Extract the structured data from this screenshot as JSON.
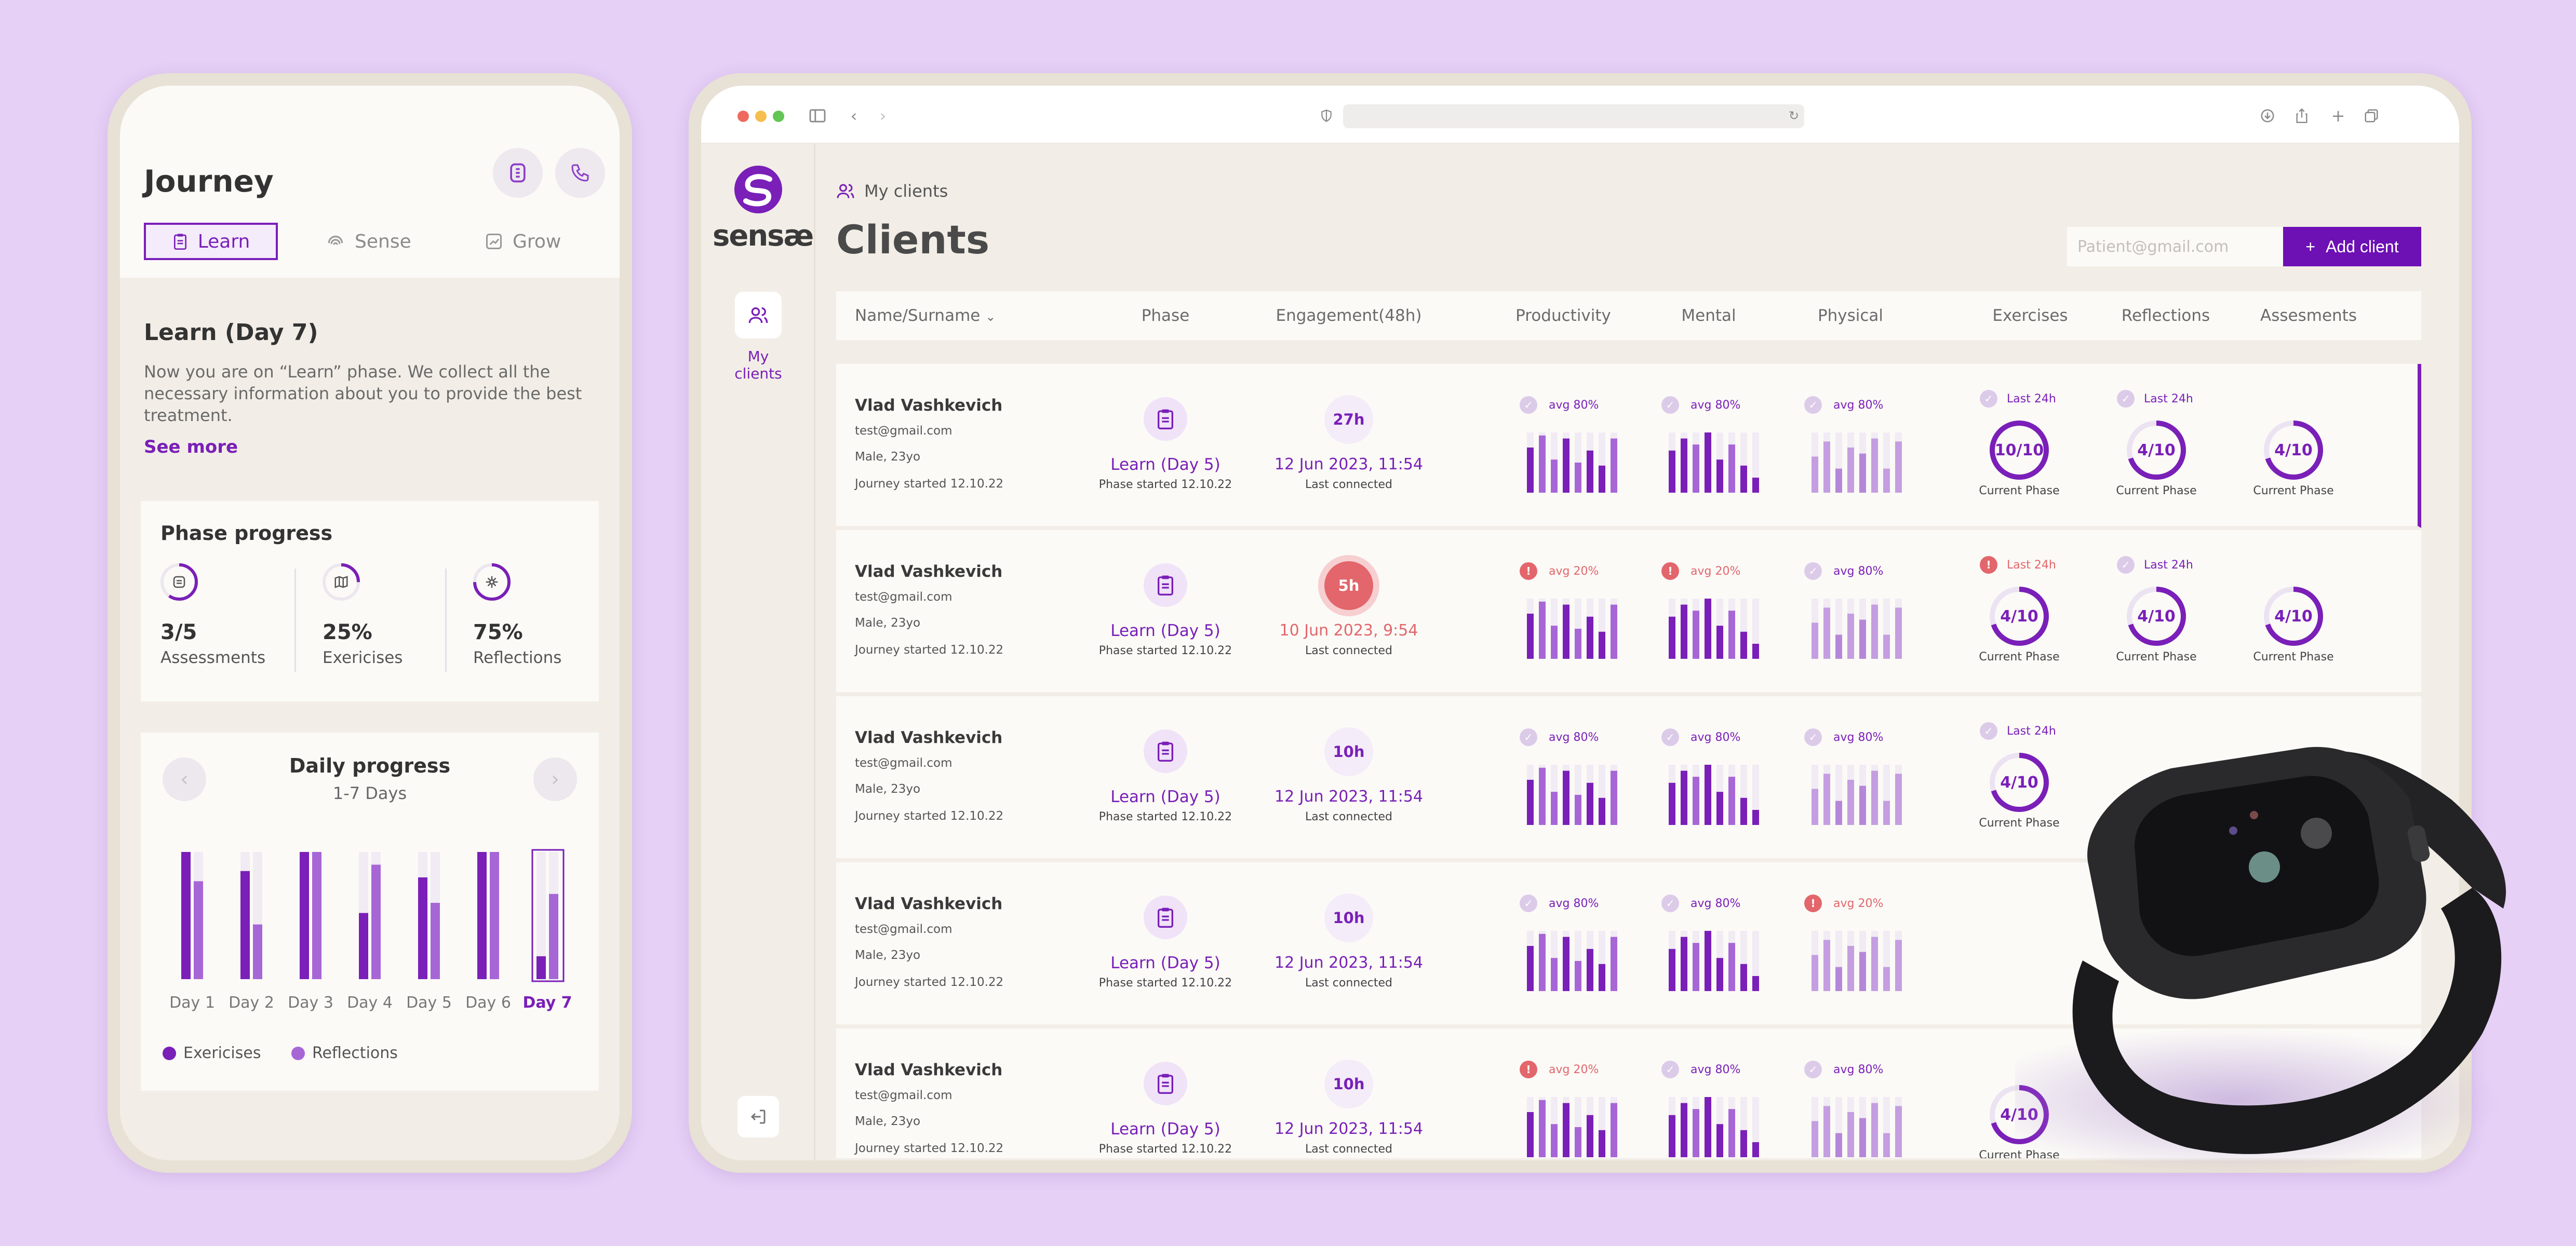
{
  "colors": {
    "accent": "#7a1fb8",
    "accent_light": "#a766d6",
    "alert": "#e2666b",
    "bg": "#e6d0f6"
  },
  "phone": {
    "title": "Journey",
    "tabs": [
      {
        "label": "Learn",
        "icon": "clipboard-icon",
        "active": true
      },
      {
        "label": "Sense",
        "icon": "fingerprint-icon",
        "active": false
      },
      {
        "label": "Grow",
        "icon": "growth-chart-icon",
        "active": false
      }
    ],
    "learn_title": "Learn (Day 7)",
    "learn_text": "Now you are on “Learn” phase. We collect all the necessary information about you to provide the best treatment.",
    "see_more": "See more",
    "phase_progress": {
      "title": "Phase progress",
      "items": [
        {
          "value": "3/5",
          "label": "Assessments",
          "icon": "list-icon",
          "fraction": 0.6
        },
        {
          "value": "25%",
          "label": "Exericises",
          "icon": "map-icon",
          "fraction": 0.25
        },
        {
          "value": "75%",
          "label": "Reflections",
          "icon": "flower-icon",
          "fraction": 0.75
        }
      ]
    },
    "daily_progress": {
      "title": "Daily progress",
      "subtitle": "1-7 Days",
      "legend": [
        "Exericises",
        "Reflections"
      ]
    }
  },
  "chart_data": {
    "type": "bar",
    "categories": [
      "Day 1",
      "Day 2",
      "Day 3",
      "Day 4",
      "Day 5",
      "Day 6",
      "Day 7"
    ],
    "series": [
      {
        "name": "Exericises",
        "values": [
          100,
          85,
          100,
          52,
          80,
          100,
          18
        ]
      },
      {
        "name": "Reflections",
        "values": [
          77,
          43,
          100,
          90,
          60,
          100,
          67
        ]
      }
    ],
    "highlight": "Day 7",
    "ylim": [
      0,
      100
    ]
  },
  "browser": {
    "icons": [
      "sidebar-toggle-icon",
      "back-arrow-icon",
      "forward-arrow-icon",
      "shield-icon",
      "reload-icon",
      "download-icon",
      "share-icon",
      "new-tab-icon",
      "tabs-overview-icon"
    ]
  },
  "app": {
    "logo": "sensæ",
    "sidebar_item": "My clients",
    "breadcrumb": "My clients",
    "page_title": "Clients",
    "search_placeholder": "Patient@gmail.com",
    "add_client": "Add client",
    "columns": [
      "Name/Surname",
      "Phase",
      "Engagement(48h)",
      "Productivity",
      "Mental",
      "Physical",
      "Exercises",
      "Reflections",
      "Assesments"
    ]
  },
  "clients": [
    {
      "name": "Vlad Vashkevich",
      "email": "test@gmail.com",
      "meta": "Male, 23yo",
      "journey": "Journey started 12.10.22",
      "phase": "Learn (Day 5)",
      "phase_sub": "Phase started 12.10.22",
      "eng": "27h",
      "eng_alert": false,
      "date": "12 Jun 2023, 11:54",
      "last": "Last connected",
      "metrics": [
        {
          "txt": "avg 80%",
          "bad": false,
          "bars": [
            0.75,
            0.95,
            0.55,
            0.9,
            0.5,
            0.7,
            0.45,
            0.9
          ]
        },
        {
          "txt": "avg 80%",
          "bad": false,
          "bars": [
            0.7,
            0.9,
            0.8,
            1.0,
            0.55,
            0.8,
            0.45,
            0.25
          ]
        },
        {
          "txt": "avg 80%",
          "bad": false,
          "bars": [
            0.6,
            0.85,
            0.4,
            0.75,
            0.65,
            0.9,
            0.4,
            0.85
          ]
        }
      ],
      "rings": [
        {
          "val": "10/10",
          "tag": "Last 24h",
          "bad": false,
          "p": 1.0
        },
        {
          "val": "4/10",
          "tag": "Last 24h",
          "bad": false,
          "p": 0.7
        },
        {
          "val": "4/10",
          "tag": "",
          "bad": false,
          "p": 0.7
        }
      ],
      "ring_lbl": "Current Phase"
    },
    {
      "name": "Vlad Vashkevich",
      "email": "test@gmail.com",
      "meta": "Male, 23yo",
      "journey": "Journey started 12.10.22",
      "phase": "Learn (Day 5)",
      "phase_sub": "Phase started 12.10.22",
      "eng": "5h",
      "eng_alert": true,
      "date": "10 Jun 2023, 9:54",
      "last": "Last connected",
      "metrics": [
        {
          "txt": "avg 20%",
          "bad": true,
          "bars": [
            0.75,
            0.95,
            0.55,
            0.9,
            0.5,
            0.7,
            0.45,
            0.9
          ]
        },
        {
          "txt": "avg 20%",
          "bad": true,
          "bars": [
            0.7,
            0.9,
            0.8,
            1.0,
            0.55,
            0.8,
            0.45,
            0.25
          ]
        },
        {
          "txt": "avg 80%",
          "bad": false,
          "bars": [
            0.6,
            0.85,
            0.4,
            0.75,
            0.65,
            0.9,
            0.4,
            0.85
          ]
        }
      ],
      "rings": [
        {
          "val": "4/10",
          "tag": "Last 24h",
          "bad": true,
          "p": 0.7
        },
        {
          "val": "4/10",
          "tag": "Last 24h",
          "bad": false,
          "p": 0.7
        },
        {
          "val": "4/10",
          "tag": "",
          "bad": false,
          "p": 0.7
        }
      ],
      "ring_lbl": "Current Phase"
    },
    {
      "name": "Vlad Vashkevich",
      "email": "test@gmail.com",
      "meta": "Male, 23yo",
      "journey": "Journey started 12.10.22",
      "phase": "Learn (Day 5)",
      "phase_sub": "Phase started 12.10.22",
      "eng": "10h",
      "eng_alert": false,
      "date": "12 Jun 2023, 11:54",
      "last": "Last connected",
      "metrics": [
        {
          "txt": "avg 80%",
          "bad": false,
          "bars": [
            0.75,
            0.95,
            0.55,
            0.9,
            0.5,
            0.7,
            0.45,
            0.9
          ]
        },
        {
          "txt": "avg 80%",
          "bad": false,
          "bars": [
            0.7,
            0.9,
            0.8,
            1.0,
            0.55,
            0.8,
            0.45,
            0.25
          ]
        },
        {
          "txt": "avg 80%",
          "bad": false,
          "bars": [
            0.6,
            0.85,
            0.4,
            0.75,
            0.65,
            0.9,
            0.4,
            0.85
          ]
        }
      ],
      "rings": [
        {
          "val": "4/10",
          "tag": "Last 24h",
          "bad": false,
          "p": 0.7
        },
        {
          "val": "",
          "tag": "",
          "bad": true,
          "p": 0.7
        }
      ],
      "ring_lbl": "Current Phase"
    },
    {
      "name": "Vlad Vashkevich",
      "email": "test@gmail.com",
      "meta": "Male, 23yo",
      "journey": "Journey started 12.10.22",
      "phase": "Learn (Day 5)",
      "phase_sub": "Phase started 12.10.22",
      "eng": "10h",
      "eng_alert": false,
      "date": "12 Jun 2023, 11:54",
      "last": "Last connected",
      "metrics": [
        {
          "txt": "avg 80%",
          "bad": false,
          "bars": [
            0.75,
            0.95,
            0.55,
            0.9,
            0.5,
            0.7,
            0.45,
            0.9
          ]
        },
        {
          "txt": "avg 80%",
          "bad": false,
          "bars": [
            0.7,
            0.9,
            0.8,
            1.0,
            0.55,
            0.8,
            0.45,
            0.25
          ]
        },
        {
          "txt": "avg 20%",
          "bad": true,
          "bars": [
            0.6,
            0.85,
            0.4,
            0.75,
            0.65,
            0.9,
            0.4,
            0.85
          ]
        }
      ],
      "rings": [],
      "ring_lbl": "Current Phase"
    },
    {
      "name": "Vlad Vashkevich",
      "email": "test@gmail.com",
      "meta": "Male, 23yo",
      "journey": "Journey started 12.10.22",
      "phase": "Learn (Day 5)",
      "phase_sub": "Phase started 12.10.22",
      "eng": "10h",
      "eng_alert": false,
      "date": "12 Jun 2023, 11:54",
      "last": "Last connected",
      "metrics": [
        {
          "txt": "avg 20%",
          "bad": true,
          "bars": [
            0.75,
            0.95,
            0.55,
            0.9,
            0.5,
            0.7,
            0.45,
            0.9
          ]
        },
        {
          "txt": "avg 80%",
          "bad": false,
          "bars": [
            0.7,
            0.9,
            0.8,
            1.0,
            0.55,
            0.8,
            0.45,
            0.25
          ]
        },
        {
          "txt": "avg 80%",
          "bad": false,
          "bars": [
            0.6,
            0.85,
            0.4,
            0.75,
            0.65,
            0.9,
            0.4,
            0.85
          ]
        }
      ],
      "rings": [
        {
          "val": "4/10",
          "tag": "",
          "bad": false,
          "p": 0.7
        }
      ],
      "ring_lbl": "Current Phase"
    }
  ]
}
